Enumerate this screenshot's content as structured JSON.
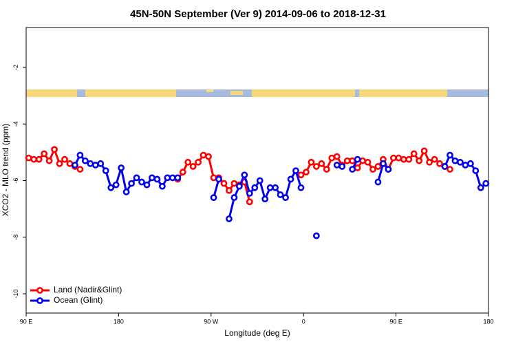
{
  "chart_data": {
    "type": "line",
    "title": "45N-50N September (Ver 9)   2014-09-06 to 2018-12-31",
    "x_label": "Longitude (deg E)",
    "y_label": "XCO2 - MLO trend (ppm)",
    "xlim": [
      90,
      540
    ],
    "xticks": [
      {
        "value": 90,
        "label": "90 E"
      },
      {
        "value": 180,
        "label": "180"
      },
      {
        "value": 270,
        "label": "90 W"
      },
      {
        "value": 360,
        "label": "0"
      },
      {
        "value": 450,
        "label": "90 E"
      },
      {
        "value": 540,
        "label": "180"
      }
    ],
    "ylim": [
      -10.68,
      -0.59
    ],
    "yticks": [
      -2,
      -4,
      -6,
      -8,
      -10
    ],
    "legend": "bottom-left",
    "x": [
      92.5,
      97.5,
      102.5,
      107.5,
      112.5,
      117.5,
      122.5,
      127.5,
      132.5,
      137.5,
      142.5,
      147.5,
      152.5,
      157.5,
      162.5,
      167.5,
      172.5,
      177.5,
      182.5,
      187.5,
      192.5,
      197.5,
      202.5,
      207.5,
      212.5,
      217.5,
      222.5,
      227.5,
      232.5,
      237.5,
      242.5,
      247.5,
      252.5,
      257.5,
      262.5,
      267.5,
      272.5,
      277.5,
      282.5,
      287.5,
      292.5,
      297.5,
      302.5,
      307.5,
      312.5,
      317.5,
      322.5,
      327.5,
      332.5,
      337.5,
      342.5,
      347.5,
      352.5,
      357.5,
      362.5,
      367.5,
      372.5,
      377.5,
      382.5,
      387.5,
      392.5,
      397.5,
      402.5,
      407.5,
      412.5,
      417.5,
      422.5,
      427.5,
      432.5,
      437.5,
      442.5,
      447.5,
      452.5,
      457.5,
      462.5,
      467.5,
      472.5,
      477.5,
      482.5,
      487.5,
      492.5,
      497.5,
      502.5,
      507.5,
      512.5,
      517.5,
      522.5,
      527.5,
      532.5,
      537.5
    ],
    "series": [
      {
        "name": "Land (Nadir&Glint)",
        "color": "#ff0000",
        "values": [
          -5.2,
          -5.25,
          -5.25,
          -5.05,
          -5.3,
          -4.9,
          -5.4,
          -5.25,
          -5.4,
          -5.5,
          -5.6,
          null,
          null,
          null,
          null,
          null,
          null,
          null,
          null,
          null,
          null,
          null,
          null,
          null,
          null,
          null,
          null,
          null,
          null,
          -5.95,
          -5.7,
          -5.35,
          -5.5,
          -5.35,
          -5.1,
          -5.15,
          -5.9,
          -5.9,
          -6.1,
          -6.35,
          -6.1,
          -6.15,
          -6.05,
          -6.75,
          null,
          null,
          null,
          null,
          null,
          null,
          null,
          null,
          null,
          -5.8,
          -5.7,
          -5.35,
          -5.5,
          -5.4,
          -5.6,
          -5.2,
          -5.15,
          -5.45,
          -5.3,
          -5.3,
          -5.55,
          -5.3,
          -5.35,
          -5.6,
          -5.5,
          -5.25,
          -5.6,
          -5.2,
          -5.2,
          -5.25,
          -5.25,
          -5.05,
          -5.3,
          -4.95,
          -5.35,
          -5.25,
          -5.4,
          -5.5,
          -5.6,
          null,
          null,
          null,
          null,
          null,
          null,
          null
        ]
      },
      {
        "name": "Ocean (Glint)",
        "color": "#0000ee",
        "values": [
          null,
          null,
          null,
          null,
          null,
          null,
          null,
          null,
          null,
          -5.45,
          -5.1,
          -5.3,
          -5.4,
          -5.45,
          -5.4,
          -5.65,
          -6.25,
          -6.15,
          -5.55,
          -6.4,
          -6.1,
          -5.9,
          -6.05,
          -6.15,
          -5.9,
          -5.95,
          -6.2,
          -5.9,
          -5.9,
          -5.9,
          null,
          null,
          null,
          null,
          null,
          null,
          -6.6,
          -5.95,
          null,
          -7.35,
          -6.6,
          -6.2,
          -5.8,
          -6.45,
          -6.25,
          -6.0,
          -6.65,
          -6.25,
          -6.25,
          -6.5,
          -6.6,
          -5.95,
          -5.65,
          -6.25,
          null,
          null,
          -7.95,
          null,
          null,
          null,
          -5.45,
          -5.5,
          null,
          -5.6,
          -5.25,
          null,
          null,
          null,
          -6.05,
          -5.4,
          -5.6,
          null,
          null,
          null,
          null,
          null,
          null,
          null,
          null,
          null,
          null,
          -5.5,
          -5.1,
          -5.3,
          -5.35,
          -5.45,
          -5.4,
          -5.65,
          -6.25,
          -6.1
        ]
      }
    ]
  }
}
